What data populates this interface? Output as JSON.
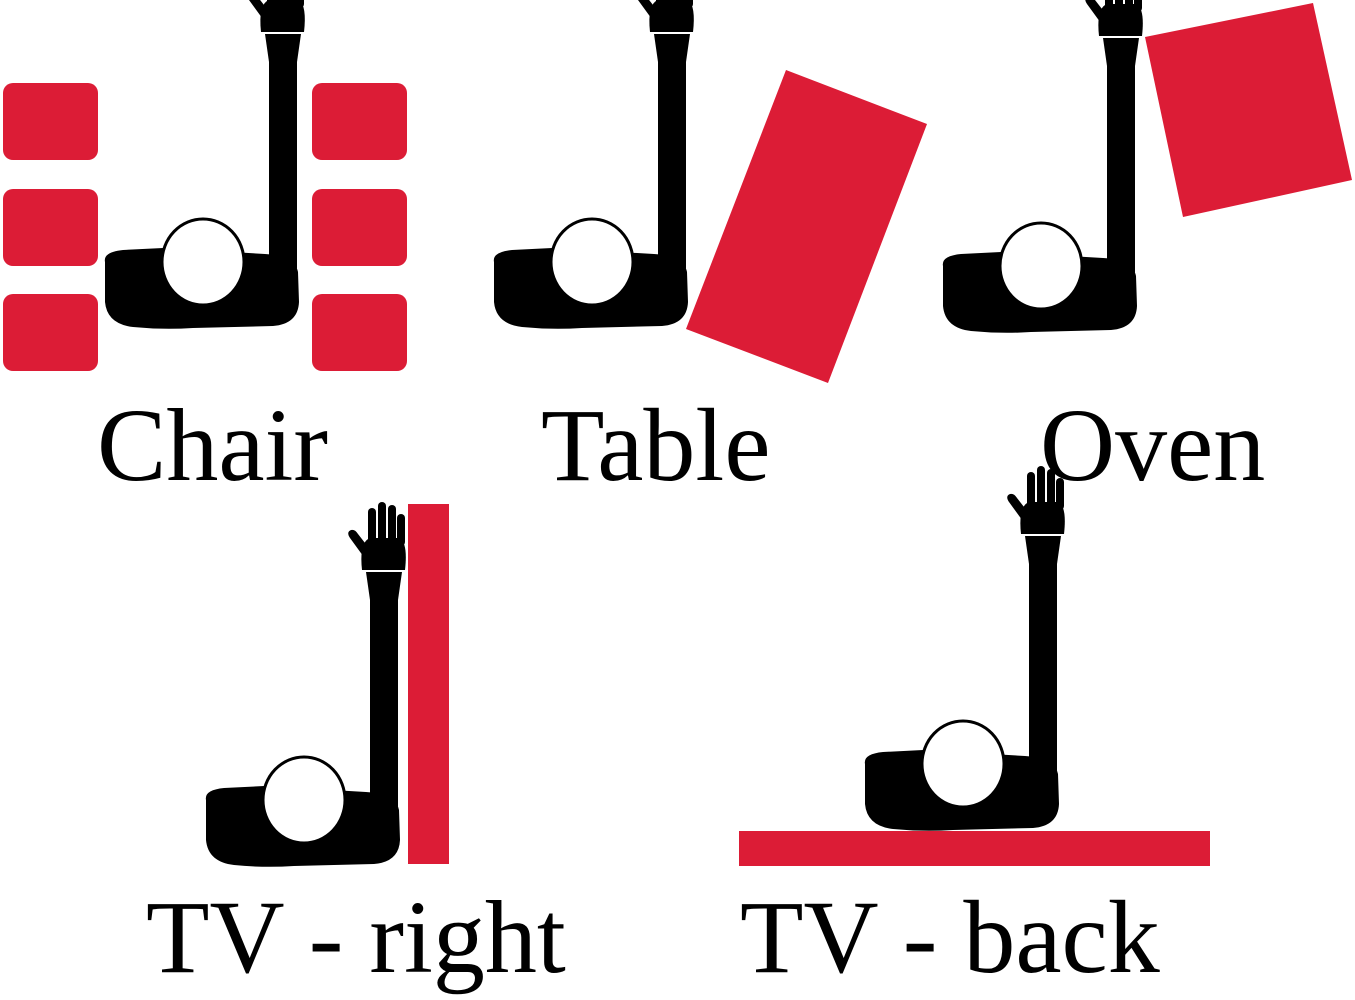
{
  "colors": {
    "object": "#DC1C36",
    "figure": "#000000",
    "background": "#ffffff"
  },
  "icons": [
    "person-raised-arm-icon"
  ],
  "panels": [
    {
      "id": "chair",
      "label": "Chair"
    },
    {
      "id": "table",
      "label": "Table"
    },
    {
      "id": "oven",
      "label": "Oven"
    },
    {
      "id": "tv-right",
      "label": "TV - right"
    },
    {
      "id": "tv-back",
      "label": "TV - back"
    }
  ]
}
